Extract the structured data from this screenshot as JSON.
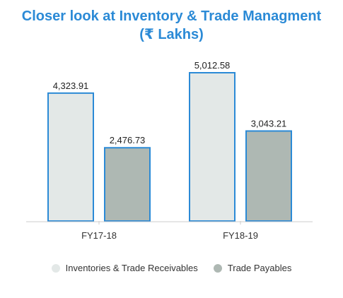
{
  "title_line1": "Closer look at Inventory & Trade Managment",
  "title_line2": "(₹ Lakhs)",
  "chart_data": {
    "type": "bar",
    "categories": [
      "FY17-18",
      "FY18-19"
    ],
    "series": [
      {
        "name": "Inventories & Trade Receivables",
        "values": [
          4323.91,
          5012.58
        ],
        "labels": [
          "4,323.91",
          "5,012.58"
        ],
        "color": "#e3e8e7"
      },
      {
        "name": "Trade Payables",
        "values": [
          2476.73,
          3043.21
        ],
        "labels": [
          "2,476.73",
          "3,043.21"
        ],
        "color": "#aeb8b3"
      }
    ],
    "bar_border_color": "#2b8ad6",
    "ylim": [
      0,
      5012.58
    ],
    "grid": false,
    "legend_position": "bottom"
  }
}
